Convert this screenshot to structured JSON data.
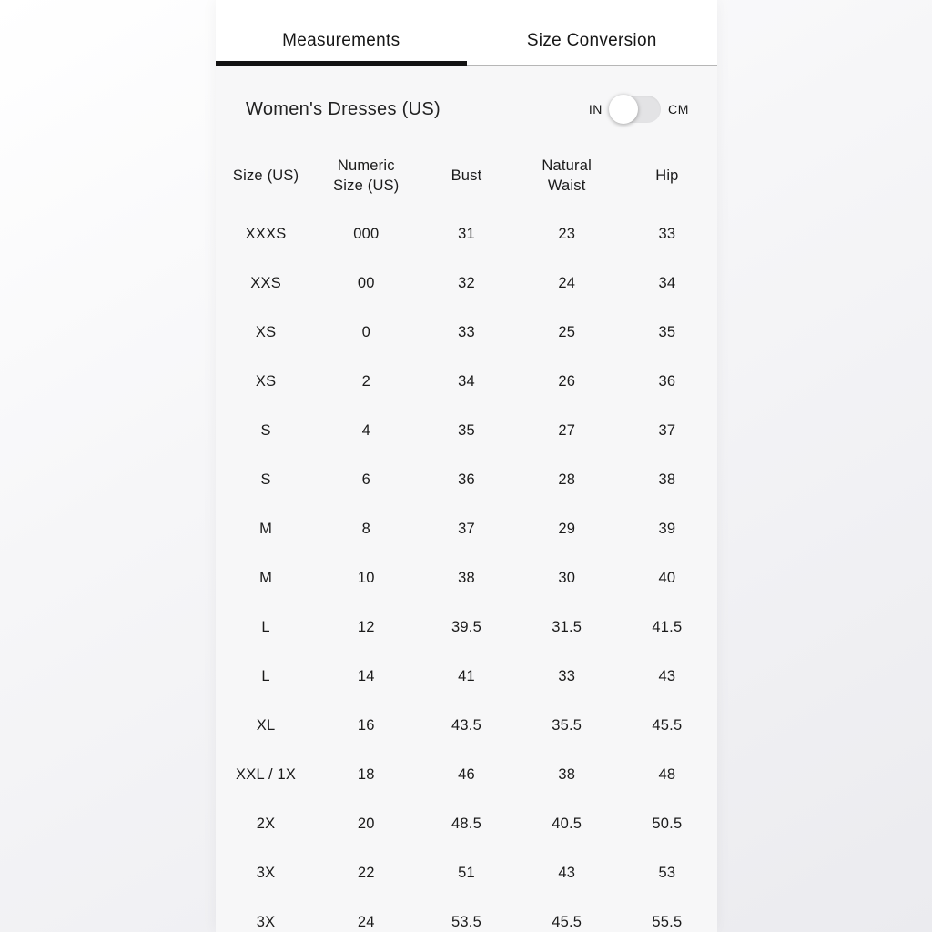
{
  "tabs": [
    {
      "label": "Measurements",
      "active": true
    },
    {
      "label": "Size Conversion",
      "active": false
    }
  ],
  "panel": {
    "title": "Women's Dresses (US)",
    "unit_toggle": {
      "left_label": "IN",
      "right_label": "CM",
      "selected": "IN"
    }
  },
  "table": {
    "columns": [
      "Size (US)",
      "Numeric\nSize (US)",
      "Bust",
      "Natural\nWaist",
      "Hip"
    ],
    "rows": [
      [
        "XXXS",
        "000",
        "31",
        "23",
        "33"
      ],
      [
        "XXS",
        "00",
        "32",
        "24",
        "34"
      ],
      [
        "XS",
        "0",
        "33",
        "25",
        "35"
      ],
      [
        "XS",
        "2",
        "34",
        "26",
        "36"
      ],
      [
        "S",
        "4",
        "35",
        "27",
        "37"
      ],
      [
        "S",
        "6",
        "36",
        "28",
        "38"
      ],
      [
        "M",
        "8",
        "37",
        "29",
        "39"
      ],
      [
        "M",
        "10",
        "38",
        "30",
        "40"
      ],
      [
        "L",
        "12",
        "39.5",
        "31.5",
        "41.5"
      ],
      [
        "L",
        "14",
        "41",
        "33",
        "43"
      ],
      [
        "XL",
        "16",
        "43.5",
        "35.5",
        "45.5"
      ],
      [
        "XXL / 1X",
        "18",
        "46",
        "38",
        "48"
      ],
      [
        "2X",
        "20",
        "48.5",
        "40.5",
        "50.5"
      ],
      [
        "3X",
        "22",
        "51",
        "43",
        "53"
      ],
      [
        "3X",
        "24",
        "53.5",
        "45.5",
        "55.5"
      ]
    ]
  },
  "colors": {
    "active_tab_underline": "#131313",
    "tab_divider": "#b6b6b6",
    "panel_background": "#f7f7f8",
    "tab_bar_background": "#ffffff",
    "toggle_track": "#e3e3e5",
    "toggle_knob": "#ffffff",
    "text": "#1b1b1b"
  }
}
